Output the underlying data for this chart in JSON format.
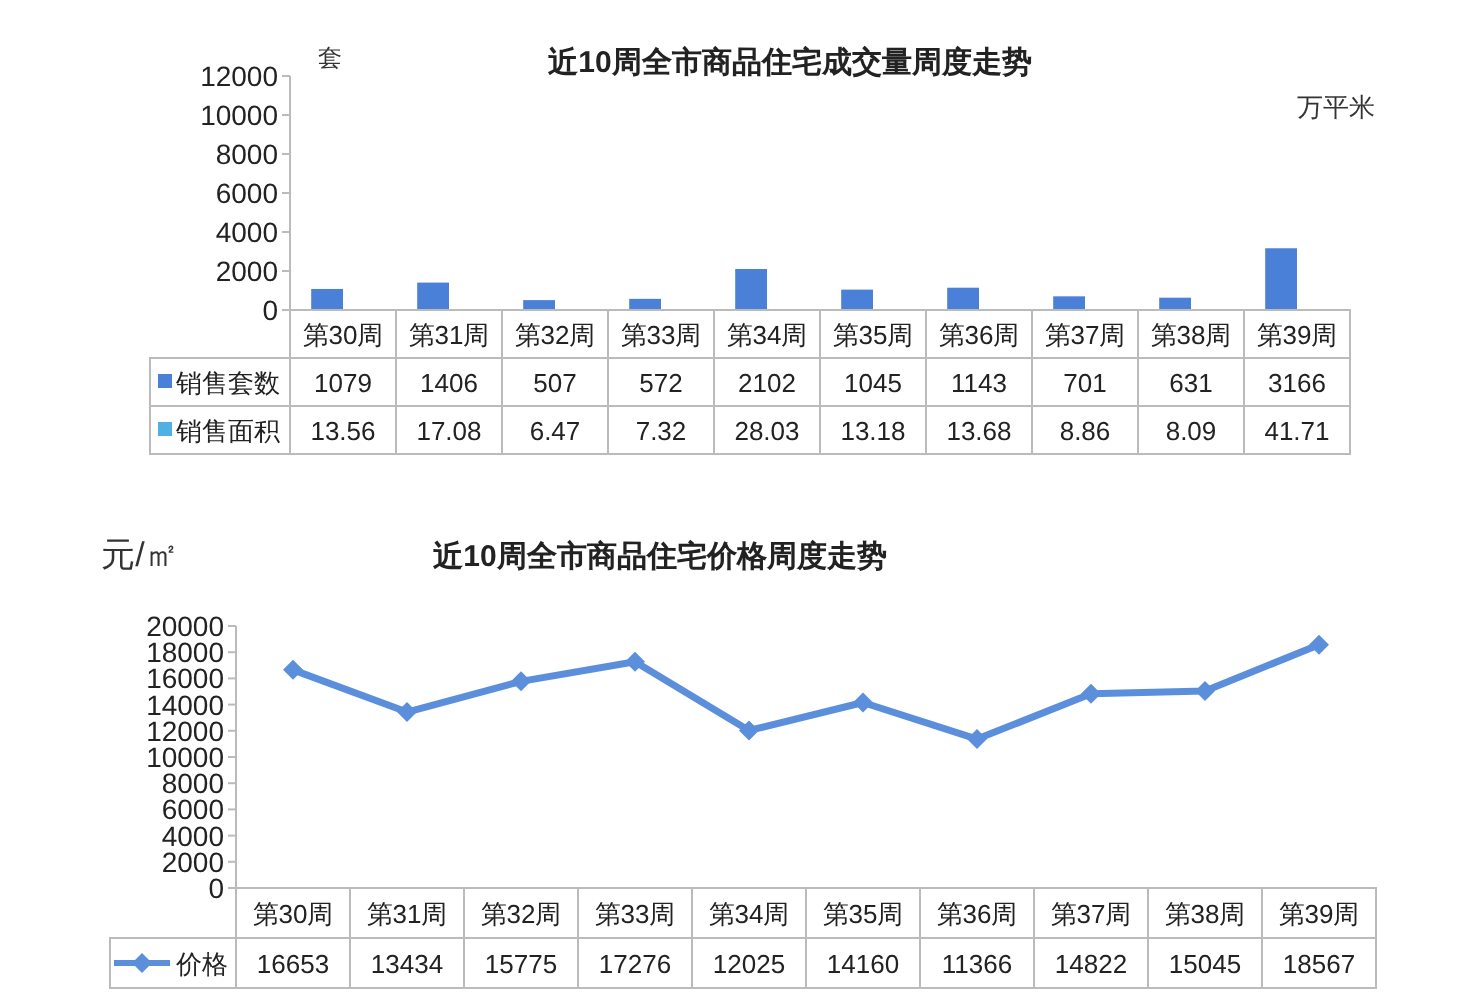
{
  "chart_data": [
    {
      "type": "bar",
      "title": "近10周全市商品住宅成交量周度走势",
      "ylabel": "套",
      "y2label": "万平米",
      "categories": [
        "第30周",
        "第31周",
        "第32周",
        "第33周",
        "第34周",
        "第35周",
        "第36周",
        "第37周",
        "第38周",
        "第39周"
      ],
      "series": [
        {
          "name": "销售套数",
          "color": "#4a80d8",
          "values": [
            1079,
            1406,
            507,
            572,
            2102,
            1045,
            1143,
            701,
            631,
            3166
          ]
        },
        {
          "name": "销售面积",
          "color": "#4fb0e3",
          "values": [
            13.56,
            17.08,
            6.47,
            7.32,
            28.03,
            13.18,
            13.68,
            8.86,
            8.09,
            41.71
          ]
        }
      ],
      "ylim": [
        0,
        12000
      ],
      "yticks": [
        0,
        2000,
        4000,
        6000,
        8000,
        10000,
        12000
      ],
      "grid": false,
      "legend": "bottom",
      "data_labels": true
    },
    {
      "type": "line",
      "title": "近10周全市商品住宅价格周度走势",
      "ylabel": "元/㎡",
      "categories": [
        "第30周",
        "第31周",
        "第32周",
        "第33周",
        "第34周",
        "第35周",
        "第36周",
        "第37周",
        "第38周",
        "第39周"
      ],
      "series": [
        {
          "name": "价格",
          "color": "#5b8fdc",
          "values": [
            16653,
            13434,
            15775,
            17276,
            12025,
            14160,
            11366,
            14822,
            15045,
            18567
          ]
        }
      ],
      "ylim": [
        0,
        20000
      ],
      "yticks": [
        0,
        2000,
        4000,
        6000,
        8000,
        10000,
        12000,
        14000,
        16000,
        18000,
        20000
      ],
      "grid": false,
      "legend": "bottom",
      "marker": "diamond",
      "line_style": "solid",
      "data_labels": true
    }
  ]
}
